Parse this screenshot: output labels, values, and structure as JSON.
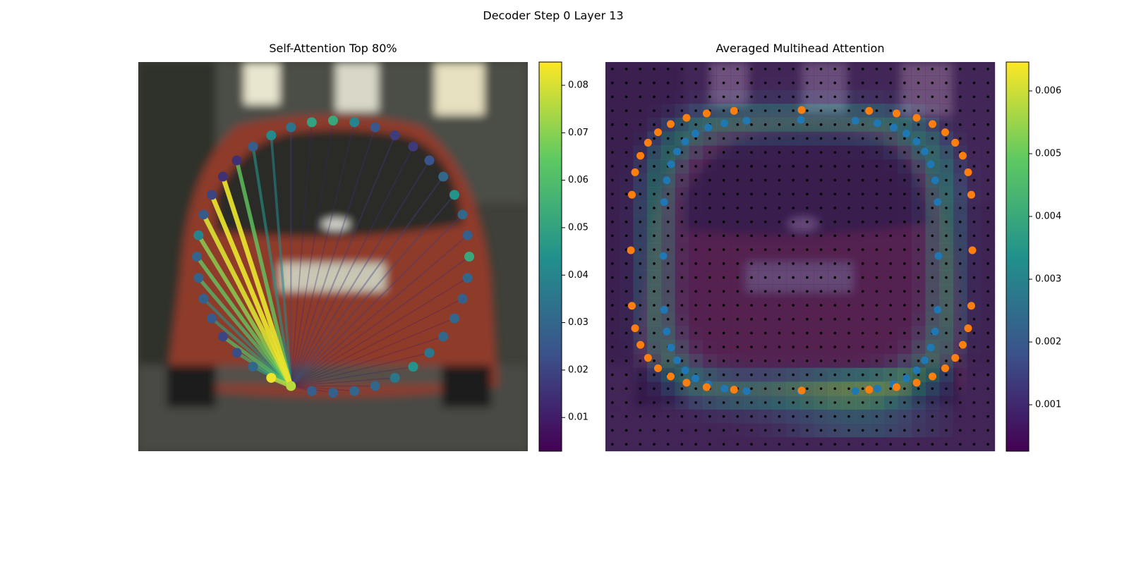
{
  "figure_title": "Decoder Step 0 Layer 13",
  "chart_data": [
    {
      "type": "attention-graph",
      "title": "Self-Attention Top 80%",
      "colormap": "viridis",
      "source": 0,
      "values": [
        0.076,
        0.083,
        0.03,
        0.022,
        0.02,
        0.026,
        0.028,
        0.029,
        0.029,
        0.04,
        0.026,
        0.02,
        0.015,
        0.015,
        0.027,
        0.042,
        0.034,
        0.05,
        0.052,
        0.04,
        0.025,
        0.018,
        0.017,
        0.024,
        0.03,
        0.045,
        0.03,
        0.028,
        0.052,
        0.03,
        0.028,
        0.03,
        0.03,
        0.035,
        0.045,
        0.035,
        0.03,
        0.03,
        0.028,
        0.028
      ],
      "edge_values": [
        null,
        0.075,
        0.05,
        0.055,
        0.06,
        0.05,
        0.045,
        0.06,
        0.065,
        0.07,
        0.08,
        0.082,
        0.082,
        0.065,
        0.045,
        0.04,
        0.02,
        0.012,
        0.012,
        0.014,
        0.016,
        0.018,
        0.016,
        0.018,
        0.02,
        0.02,
        0.018,
        0.016,
        0.014,
        0.01,
        0.008,
        0.008,
        0.008,
        0.008,
        0.008,
        0.008,
        0.008,
        0.008,
        0.008,
        0.01
      ],
      "clim": [
        0.0029,
        0.0849
      ],
      "cticks": [
        0.01,
        0.02,
        0.03,
        0.04,
        0.05,
        0.06,
        0.07,
        0.08
      ]
    },
    {
      "type": "heatmap",
      "title": "Averaged Multihead Attention",
      "colormap": "viridis",
      "clim": [
        0.00026,
        0.00646
      ],
      "cticks": [
        0.001,
        0.002,
        0.003,
        0.004,
        0.005,
        0.006
      ]
    }
  ]
}
